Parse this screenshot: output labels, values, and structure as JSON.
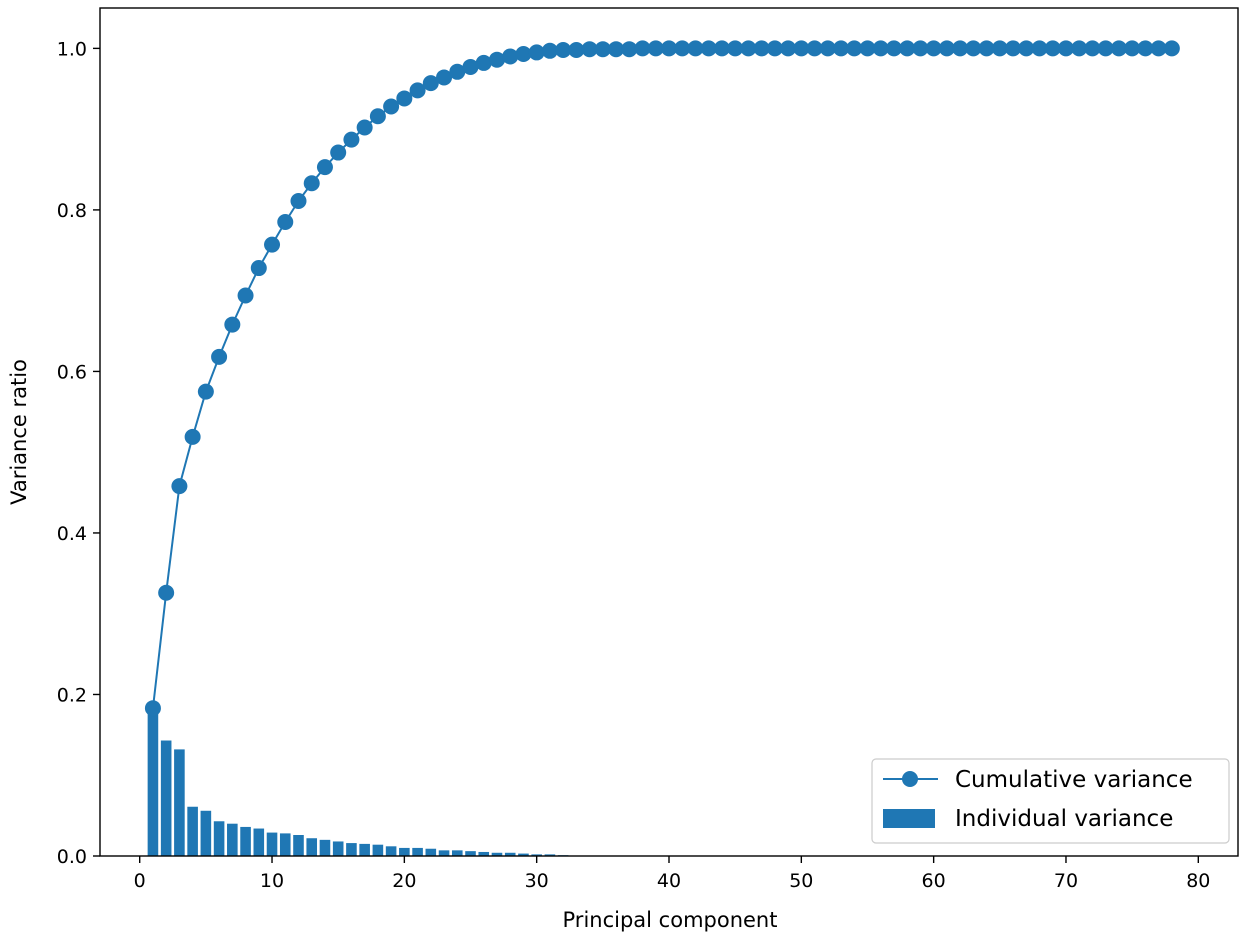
{
  "chart_data": {
    "type": "bar",
    "xlabel": "Principal component",
    "ylabel": "Variance ratio",
    "xlim": [
      -3,
      83
    ],
    "ylim": [
      0,
      1.05
    ],
    "xticks": [
      0,
      10,
      20,
      30,
      40,
      50,
      60,
      70,
      80
    ],
    "yticks": [
      0.0,
      0.2,
      0.4,
      0.6,
      0.8,
      1.0
    ],
    "ytick_labels": [
      "0.0",
      "0.2",
      "0.4",
      "0.6",
      "0.8",
      "1.0"
    ],
    "grid": false,
    "legend_position": "bottom-right",
    "colors": {
      "series": "#1f77b4",
      "axes": "#000000",
      "legend_border": "#cccccc"
    },
    "series": [
      {
        "name": "Cumulative variance",
        "type": "line",
        "marker": "circle",
        "x": [
          1,
          2,
          3,
          4,
          5,
          6,
          7,
          8,
          9,
          10,
          11,
          12,
          13,
          14,
          15,
          16,
          17,
          18,
          19,
          20,
          21,
          22,
          23,
          24,
          25,
          26,
          27,
          28,
          29,
          30,
          31,
          32,
          33,
          34,
          35,
          36,
          37,
          38,
          39,
          40,
          41,
          42,
          43,
          44,
          45,
          46,
          47,
          48,
          49,
          50,
          51,
          52,
          53,
          54,
          55,
          56,
          57,
          58,
          59,
          60,
          61,
          62,
          63,
          64,
          65,
          66,
          67,
          68,
          69,
          70,
          71,
          72,
          73,
          74,
          75,
          76,
          77,
          78
        ],
        "values": [
          0.183,
          0.326,
          0.458,
          0.519,
          0.575,
          0.618,
          0.658,
          0.694,
          0.728,
          0.757,
          0.785,
          0.811,
          0.833,
          0.853,
          0.871,
          0.887,
          0.902,
          0.916,
          0.928,
          0.938,
          0.948,
          0.957,
          0.964,
          0.971,
          0.977,
          0.982,
          0.986,
          0.99,
          0.993,
          0.995,
          0.997,
          0.998,
          0.998,
          0.999,
          0.999,
          0.999,
          0.999,
          1.0,
          1.0,
          1.0,
          1.0,
          1.0,
          1.0,
          1.0,
          1.0,
          1.0,
          1.0,
          1.0,
          1.0,
          1.0,
          1.0,
          1.0,
          1.0,
          1.0,
          1.0,
          1.0,
          1.0,
          1.0,
          1.0,
          1.0,
          1.0,
          1.0,
          1.0,
          1.0,
          1.0,
          1.0,
          1.0,
          1.0,
          1.0,
          1.0,
          1.0,
          1.0,
          1.0,
          1.0,
          1.0,
          1.0,
          1.0,
          1.0
        ]
      },
      {
        "name": "Individual variance",
        "type": "bar",
        "x": [
          1,
          2,
          3,
          4,
          5,
          6,
          7,
          8,
          9,
          10,
          11,
          12,
          13,
          14,
          15,
          16,
          17,
          18,
          19,
          20,
          21,
          22,
          23,
          24,
          25,
          26,
          27,
          28,
          29,
          30,
          31,
          32,
          33,
          34,
          35,
          36,
          37,
          38,
          39,
          40,
          41,
          42,
          43,
          44,
          45,
          46,
          47,
          48,
          49,
          50,
          51,
          52,
          53,
          54,
          55,
          56,
          57,
          58,
          59,
          60,
          61,
          62,
          63,
          64,
          65,
          66,
          67,
          68,
          69,
          70,
          71,
          72,
          73,
          74,
          75,
          76,
          77,
          78
        ],
        "values": [
          0.183,
          0.143,
          0.132,
          0.061,
          0.056,
          0.043,
          0.04,
          0.036,
          0.034,
          0.029,
          0.028,
          0.026,
          0.022,
          0.02,
          0.018,
          0.016,
          0.015,
          0.014,
          0.012,
          0.01,
          0.01,
          0.009,
          0.007,
          0.007,
          0.006,
          0.005,
          0.004,
          0.004,
          0.003,
          0.002,
          0.002,
          0.001,
          0.0005,
          0.0005,
          0.0004,
          0.0003,
          0.0003,
          0.0002,
          0,
          0,
          0,
          0,
          0,
          0,
          0,
          0,
          0,
          0,
          0,
          0,
          0,
          0,
          0,
          0,
          0,
          0,
          0,
          0,
          0,
          0,
          0,
          0,
          0,
          0,
          0,
          0,
          0,
          0,
          0,
          0,
          0,
          0,
          0,
          0,
          0,
          0,
          0,
          0
        ]
      }
    ]
  }
}
